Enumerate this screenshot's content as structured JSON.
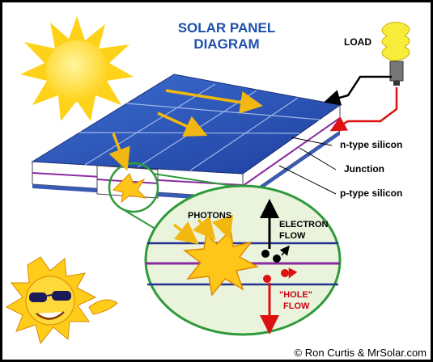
{
  "title": {
    "lines": [
      "SOLAR PANEL",
      "DIAGRAM"
    ]
  },
  "labels": {
    "load": "LOAD",
    "n_type": "n-type silicon",
    "junction": "Junction",
    "p_type": "p-type silicon"
  },
  "detail": {
    "photons": "PHOTONS",
    "electron_flow": [
      "ELECTRON",
      "FLOW"
    ],
    "hole_flow": [
      "\"HOLE\"",
      "FLOW"
    ]
  },
  "credit": "© Ron Curtis & MrSolar.com"
}
